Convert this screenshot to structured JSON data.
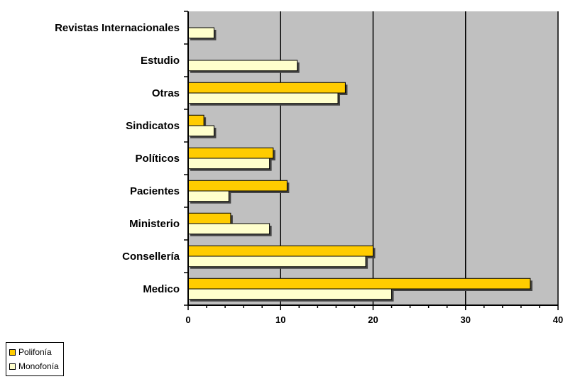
{
  "chart_data": {
    "type": "bar",
    "orientation": "horizontal",
    "title": "",
    "xlabel": "",
    "ylabel": "",
    "categories": [
      "Revistas Internacionales",
      "Estudio",
      "Otras",
      "Sindicatos",
      "Políticos",
      "Pacientes",
      "Ministerio",
      "Consellería",
      "Medico"
    ],
    "series": [
      {
        "name": "Polifonía",
        "color": "#ffcc00",
        "values": [
          0,
          0,
          17,
          1.7,
          9.2,
          10.7,
          4.6,
          20,
          37
        ]
      },
      {
        "name": "Monofonía",
        "color": "#ffffcc",
        "values": [
          2.8,
          11.8,
          16.2,
          2.8,
          8.8,
          4.4,
          8.8,
          19.2,
          22
        ]
      }
    ],
    "xlim": [
      0,
      40
    ],
    "xticks": [
      "0",
      "10",
      "20",
      "30",
      "40"
    ],
    "grid": true,
    "plot_background": "#c0c0c0",
    "legend_position": "bottom-left"
  }
}
